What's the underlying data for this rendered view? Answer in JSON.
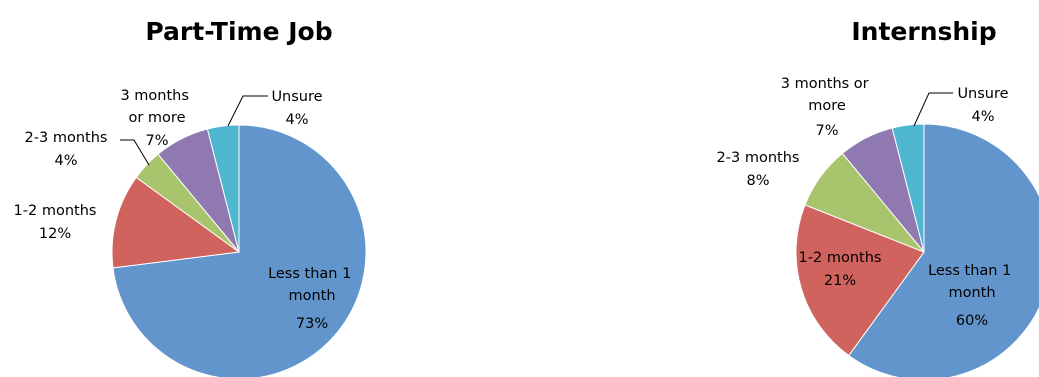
{
  "chart_data": [
    {
      "type": "pie",
      "title": "Part-Time Job",
      "slices": [
        {
          "label": "Less than 1 month",
          "value": 73,
          "pct_text": "73%",
          "color": "#6195cc"
        },
        {
          "label": "1-2 months",
          "value": 12,
          "pct_text": "12%",
          "color": "#d1635f"
        },
        {
          "label": "2-3 months",
          "value": 4,
          "pct_text": "4%",
          "color": "#a8c46c"
        },
        {
          "label": "3 months or more",
          "value": 7,
          "pct_text": "7%",
          "color": "#8f79b0"
        },
        {
          "label": "Unsure",
          "value": 4,
          "pct_text": "4%",
          "color": "#4fb6cf"
        }
      ]
    },
    {
      "type": "pie",
      "title": "Internship",
      "slices": [
        {
          "label": "Less than 1 month",
          "value": 60,
          "pct_text": "60%",
          "color": "#6195cc"
        },
        {
          "label": "1-2 months",
          "value": 21,
          "pct_text": "21%",
          "color": "#d1635f"
        },
        {
          "label": "2-3 months",
          "value": 8,
          "pct_text": "8%",
          "color": "#a8c46c"
        },
        {
          "label": "3 months or more",
          "value": 7,
          "pct_text": "7%",
          "color": "#8f79b0"
        },
        {
          "label": "Unsure",
          "value": 4,
          "pct_text": "4%",
          "color": "#4fb6cf"
        }
      ]
    }
  ]
}
